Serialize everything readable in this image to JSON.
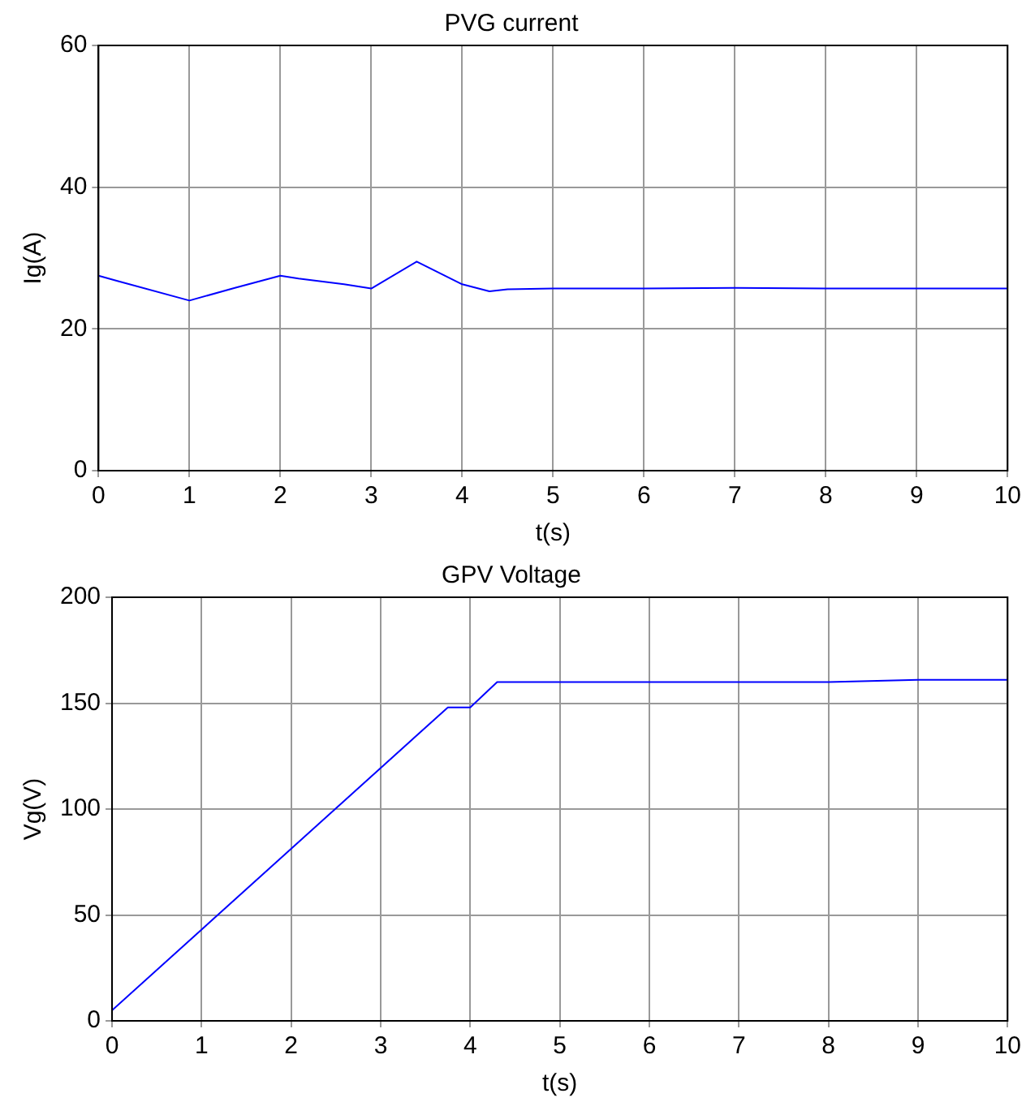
{
  "chart_data": [
    {
      "type": "line",
      "title": "PVG current",
      "xlabel": "t(s)",
      "ylabel": "Ig(A)",
      "xlim": [
        0,
        10
      ],
      "xticks": [
        0,
        1,
        2,
        3,
        4,
        5,
        6,
        7,
        8,
        9,
        10
      ],
      "ylim": [
        0,
        60
      ],
      "yticks": [
        0,
        20,
        40,
        60
      ],
      "grid": true,
      "legend": false,
      "marker": "none",
      "line_style": "solid",
      "series": [
        {
          "color": "#0000ff",
          "x": [
            0,
            0.2,
            1,
            1.5,
            2,
            2.2,
            2.7,
            3,
            3.5,
            4,
            4.3,
            4.5,
            5,
            6,
            7,
            8,
            9,
            10
          ],
          "values": [
            27.5,
            26.8,
            24,
            25.8,
            27.5,
            27.1,
            26.3,
            25.7,
            29.5,
            26.3,
            25.3,
            25.6,
            25.7,
            25.7,
            25.8,
            25.7,
            25.7,
            25.7
          ]
        }
      ]
    },
    {
      "type": "line",
      "title": "GPV Voltage",
      "xlabel": "t(s)",
      "ylabel": "Vg(V)",
      "xlim": [
        0,
        10
      ],
      "xticks": [
        0,
        1,
        2,
        3,
        4,
        5,
        6,
        7,
        8,
        9,
        10
      ],
      "ylim": [
        0,
        200
      ],
      "yticks": [
        0,
        50,
        100,
        150,
        200
      ],
      "grid": true,
      "legend": false,
      "marker": "none",
      "line_style": "solid",
      "series": [
        {
          "color": "#0000ff",
          "x": [
            0,
            3.75,
            4,
            4.3,
            5,
            6,
            7,
            8,
            9,
            10
          ],
          "values": [
            5,
            148,
            148,
            160,
            160,
            160,
            160,
            160,
            161,
            161
          ]
        }
      ]
    }
  ]
}
